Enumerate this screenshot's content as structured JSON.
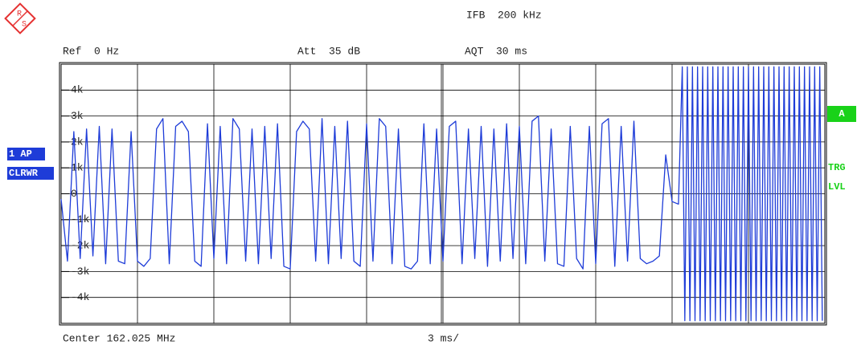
{
  "logo": [
    "R",
    "S"
  ],
  "info": {
    "ifb": "IFB  200 kHz",
    "ref": "Ref  0 Hz",
    "att": "Att  35 dB",
    "aqt": "AQT  30 ms",
    "trace_mode": [
      "1 AP",
      "CLRWR"
    ],
    "marker": "A",
    "trigger": [
      "TRG",
      "LVL"
    ],
    "center": "Center 162.025 MHz",
    "span": "3 ms/"
  },
  "chart_data": {
    "type": "line",
    "xlim": [
      0,
      30
    ],
    "ylim": [
      -5000,
      5000
    ],
    "yticks": [
      {
        "value": 4000,
        "label": "4k"
      },
      {
        "value": 3000,
        "label": "3k"
      },
      {
        "value": 2000,
        "label": "2k"
      },
      {
        "value": 1000,
        "label": "1k"
      },
      0,
      {
        "value": -1000,
        "label": "-1k"
      },
      {
        "value": -2000,
        "label": "-2k"
      },
      {
        "value": -3000,
        "label": "-3k"
      },
      {
        "value": -4000,
        "label": "-4k"
      }
    ],
    "grid": true,
    "series": [
      {
        "color": "#1e3cd8",
        "x": [
          0,
          0.25,
          0.5,
          0.75,
          1,
          1.25,
          1.5,
          1.75,
          2,
          2.25,
          2.5,
          2.75,
          3,
          3.25,
          3.5,
          3.75,
          4,
          4.25,
          4.5,
          4.75,
          5,
          5.25,
          5.5,
          5.75,
          6,
          6.25,
          6.5,
          6.75,
          7,
          7.25,
          7.5,
          7.75,
          8,
          8.25,
          8.5,
          8.75,
          9,
          9.25,
          9.5,
          9.75,
          10,
          10.25,
          10.5,
          10.75,
          11,
          11.25,
          11.5,
          11.75,
          12,
          12.25,
          12.5,
          12.75,
          13,
          13.25,
          13.5,
          13.75,
          14,
          14.25,
          14.5,
          14.75,
          15,
          15.25,
          15.5,
          15.75,
          16,
          16.25,
          16.5,
          16.75,
          17,
          17.25,
          17.5,
          17.75,
          18,
          18.25,
          18.5,
          18.75,
          19,
          19.25,
          19.5,
          19.75,
          20,
          20.25,
          20.5,
          20.75,
          21,
          21.25,
          21.5,
          21.75,
          22,
          22.25,
          22.5,
          22.75,
          23,
          23.25,
          23.5,
          23.75,
          24,
          24.25,
          24.4,
          24.5,
          24.6,
          24.7,
          24.8,
          24.9,
          25,
          25.1,
          25.2,
          25.3,
          25.4,
          25.5,
          25.6,
          25.7,
          25.8,
          25.9,
          26,
          26.1,
          26.2,
          26.3,
          26.4,
          26.5,
          26.6,
          26.7,
          26.8,
          26.9,
          27,
          27.1,
          27.2,
          27.3,
          27.4,
          27.5,
          27.6,
          27.7,
          27.8,
          27.9,
          28,
          28.1,
          28.2,
          28.3,
          28.4,
          28.5,
          28.6,
          28.7,
          28.8,
          28.9,
          29,
          29.1,
          29.2,
          29.3,
          29.4,
          29.5,
          29.6,
          29.7,
          29.8,
          29.9
        ],
        "values": [
          -200,
          -2600,
          2400,
          -2500,
          2500,
          -2400,
          2600,
          -2700,
          2500,
          -2600,
          -2700,
          2400,
          -2600,
          -2800,
          -2500,
          2500,
          2900,
          -2700,
          2600,
          2800,
          2400,
          -2600,
          -2800,
          2700,
          -2500,
          2600,
          -2700,
          2900,
          2500,
          -2600,
          2500,
          -2700,
          2600,
          -2500,
          2700,
          -2800,
          -2900,
          2400,
          2800,
          2500,
          -2600,
          2900,
          -2700,
          2600,
          -2500,
          2800,
          -2600,
          -2800,
          2700,
          -2600,
          2900,
          2600,
          -2700,
          2500,
          -2800,
          -2900,
          -2600,
          2700,
          -2700,
          2500,
          -2600,
          2600,
          2800,
          -2700,
          2500,
          -2500,
          2600,
          -2800,
          2500,
          -2600,
          2700,
          -2500,
          2600,
          -2700,
          2800,
          3000,
          -2600,
          2500,
          -2700,
          -2800,
          2600,
          -2500,
          -2900,
          2600,
          -2700,
          2700,
          2900,
          -2800,
          2600,
          -2600,
          2800,
          -2500,
          -2700,
          -2600,
          -2400,
          1500,
          -300,
          -400,
          4900,
          -4900,
          4900,
          -4900,
          4900,
          -4900,
          4900,
          -4900,
          4900,
          -4900,
          4900,
          -4900,
          4900,
          -4900,
          4900,
          -4900,
          4900,
          -4900,
          4900,
          -4900,
          4900,
          -4900,
          4900,
          -4900,
          4900,
          -4900,
          4900,
          -4900,
          4900,
          -4900,
          4900,
          -4900,
          4900,
          -4900,
          4900,
          -4900,
          4900,
          -4900,
          4900,
          -4900,
          4900,
          -4900,
          4900,
          -4900,
          4900,
          -4900,
          4900,
          -4900,
          4900,
          -4900,
          4900,
          -4900,
          4900,
          -4900,
          4900,
          -4900
        ]
      }
    ]
  }
}
